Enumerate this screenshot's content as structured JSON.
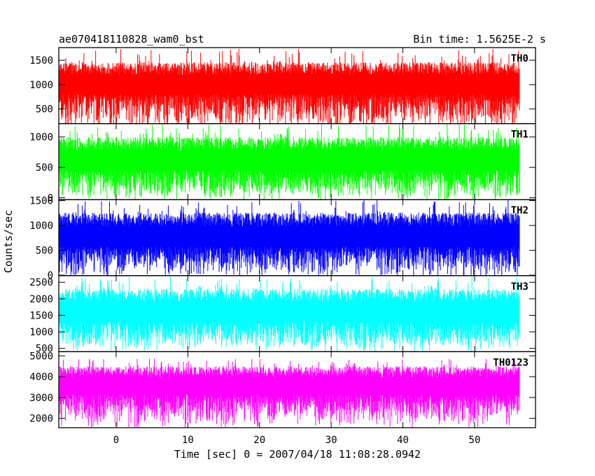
{
  "header": {
    "left_title": "ae070418110828_wam0_bst",
    "right_title": "Bin time: 1.5625E-2 s"
  },
  "axes": {
    "xlabel": "Time [sec] 0 = 2007/04/18 11:08:28.0942",
    "ylabel": "Counts/sec"
  },
  "chart_data": {
    "type": "line",
    "x_ticks": [
      0,
      10,
      20,
      30,
      40,
      50
    ],
    "xlim": [
      -8,
      58.5
    ],
    "x_data_range": [
      -7.9,
      56.3
    ],
    "grid": false,
    "panels": [
      {
        "name": "TH0",
        "color": "#ff0000",
        "ylim": [
          200,
          1760
        ],
        "y_ticks": [
          500,
          1000,
          1500
        ],
        "band": [
          150,
          1460
        ],
        "spike_max": 1740,
        "mean": 880
      },
      {
        "name": "TH1",
        "color": "#00ff00",
        "ylim": [
          -30,
          1220
        ],
        "y_ticks": [
          0,
          500,
          1000
        ],
        "band": [
          20,
          1000
        ],
        "spike_max": 1210,
        "mean": 500
      },
      {
        "name": "TH2",
        "color": "#0000ff",
        "ylim": [
          -10,
          1520
        ],
        "y_ticks": [
          0,
          500,
          1000,
          1500
        ],
        "band": [
          30,
          1260
        ],
        "spike_max": 1510,
        "mean": 640
      },
      {
        "name": "TH3",
        "color": "#00ffff",
        "ylim": [
          400,
          2700
        ],
        "y_ticks": [
          500,
          1000,
          1500,
          2000,
          2500
        ],
        "band": [
          500,
          2300
        ],
        "spike_max": 2680,
        "mean": 1400
      },
      {
        "name": "TH0123",
        "color": "#ff00ff",
        "ylim": [
          1550,
          5200
        ],
        "y_ticks": [
          2000,
          3000,
          4000,
          5000
        ],
        "band": [
          1800,
          4500
        ],
        "spike_max": 4880,
        "mean": 3300
      }
    ]
  }
}
